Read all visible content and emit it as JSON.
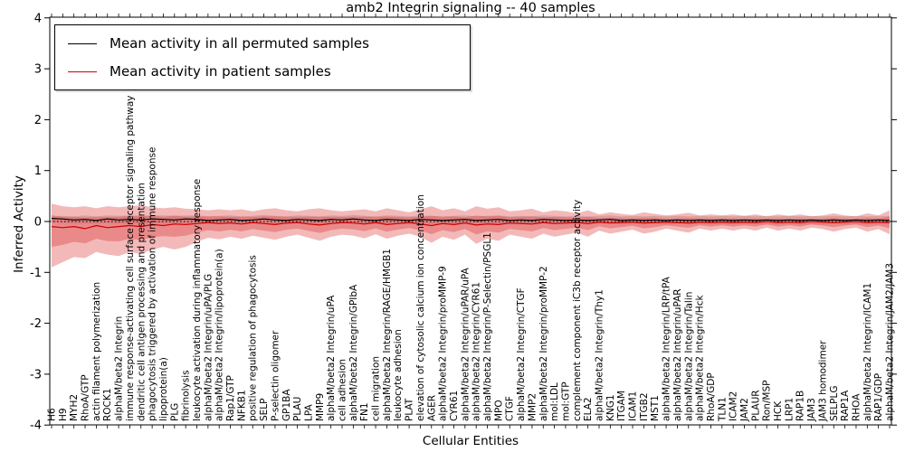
{
  "chart_data": {
    "type": "line",
    "title": "amb2 Integrin signaling -- 40 samples",
    "xlabel": "Cellular Entities",
    "ylabel": "Inferred Activity",
    "ylim": [
      -4,
      4
    ],
    "yticks": [
      4,
      3,
      2,
      1,
      0,
      -1,
      -2,
      -3,
      -4
    ],
    "zero_line": true,
    "grid": false,
    "legend_position": "upper left",
    "categories": [
      "H6",
      "H9",
      "MYH2",
      "RhoA/GTP",
      "actin filament polymerization",
      "ROCK1",
      "alphaM/beta2 Integrin",
      "immune response-activating cell surface receptor signaling pathway",
      "dendritic cell antigen processing and presentation",
      "phagocytosis triggered by activation of immune response",
      "lipoprotein(a)",
      "PLG",
      "fibrinolysis",
      "leukocyte activation during inflammatory response",
      "alphaM/beta2 Integrin/uPA/PLG",
      "alphaM/beta2 Integrin/lipoprotein(a)",
      "Rap1/GTP",
      "NFKB1",
      "positive regulation of phagocytosis",
      "SELP",
      "P-selectin oligomer",
      "GP1BA",
      "PLAU",
      "LPA",
      "MMP9",
      "alphaM/beta2 Integrin/uPA",
      "cell adhesion",
      "alphaM/beta2 Integrin/GPIbA",
      "FN1",
      "cell migration",
      "alphaM/beta2 Integrin/RAGE/HMGB1",
      "leukocyte adhesion",
      "PLAT",
      "elevation of cytosolic calcium ion concentration",
      "AGER",
      "alphaM/beta2 Integrin/proMMP-9",
      "CYR61",
      "alphaM/beta2 Integrin/uPAR/uPA",
      "alphaM/beta2 Integrin/CYR61",
      "alphaM/beta2 Integrin/P-Selectin/PSGL1",
      "MPO",
      "CTGF",
      "alphaM/beta2 Integrin/CTGF",
      "MMP2",
      "alphaM/beta2 Integrin/proMMP-2",
      "mol:LDL",
      "mol:GTP",
      "complement component iC3b receptor activity",
      "ELA2",
      "alphaM/beta2 Integrin/Thy1",
      "KNG1",
      "ITGAM",
      "ICAM1",
      "ITGB2",
      "MST1",
      "alphaM/beta2 Integrin/LRP/tPA",
      "alphaM/beta2 Integrin/uPAR",
      "alphaM/beta2 Integrin/Talin",
      "alphaM/beta2 Integrin/Hck",
      "RhoA/GDP",
      "TLN1",
      "ICAM2",
      "JAM2",
      "PLAUR",
      "Ron/MSP",
      "HCK",
      "LRP1",
      "RAP1B",
      "JAM3",
      "JAM3 homodimer",
      "SELPLG",
      "RAP1A",
      "RHOA",
      "alphaM/beta2 Integrin/ICAM1",
      "RAP1/GDP",
      "alphaM/beta2 Integrin/JAM2/JAM3"
    ],
    "series": [
      {
        "name": "Mean activity in all permuted samples",
        "color": "#000000",
        "band_color": "#999999",
        "values": [
          0.06,
          0.05,
          0.03,
          0.04,
          0.02,
          0.05,
          0.03,
          0.04,
          0.03,
          0.05,
          0.04,
          0.03,
          0.05,
          0.04,
          0.02,
          0.03,
          0.04,
          0.02,
          0.03,
          0.05,
          0.03,
          0.02,
          0.04,
          0.03,
          0.02,
          0.04,
          0.03,
          0.05,
          0.03,
          0.02,
          0.04,
          0.03,
          0.02,
          0.04,
          0.03,
          0.02,
          0.03,
          0.04,
          0.02,
          0.03,
          0.04,
          0.02,
          0.03,
          0.02,
          0.04,
          0.03,
          0.02,
          0.03,
          0.02,
          0.03,
          0.04,
          0.02,
          0.03,
          0.02,
          0.03,
          0.02,
          0.03,
          0.02,
          0.03,
          0.02,
          0.03,
          0.02,
          0.03,
          0.02,
          0.03,
          0.02,
          0.03,
          0.02,
          0.03,
          0.02,
          0.03,
          0.02,
          0.03,
          0.02,
          0.03,
          0.02
        ],
        "band_upper": [
          0.1,
          0.11,
          0.1,
          0.12,
          0.1,
          0.12,
          0.11,
          0.12,
          0.11,
          0.12,
          0.12,
          0.11,
          0.12,
          0.12,
          0.1,
          0.11,
          0.12,
          0.1,
          0.11,
          0.13,
          0.11,
          0.1,
          0.12,
          0.11,
          0.1,
          0.12,
          0.11,
          0.13,
          0.11,
          0.1,
          0.12,
          0.11,
          0.1,
          0.12,
          0.11,
          0.1,
          0.11,
          0.12,
          0.1,
          0.11,
          0.12,
          0.1,
          0.11,
          0.1,
          0.12,
          0.11,
          0.1,
          0.11,
          0.1,
          0.11,
          0.12,
          0.1,
          0.11,
          0.1,
          0.11,
          0.1,
          0.11,
          0.1,
          0.11,
          0.1,
          0.11,
          0.1,
          0.11,
          0.1,
          0.11,
          0.1,
          0.11,
          0.1,
          0.11,
          0.1,
          0.11,
          0.1,
          0.11,
          0.1,
          0.11,
          0.1
        ],
        "band_lower": [
          -0.02,
          -0.03,
          -0.04,
          -0.04,
          -0.05,
          -0.03,
          -0.05,
          -0.04,
          -0.05,
          -0.03,
          -0.04,
          -0.05,
          -0.03,
          -0.04,
          -0.06,
          -0.05,
          -0.04,
          -0.06,
          -0.05,
          -0.03,
          -0.05,
          -0.06,
          -0.04,
          -0.05,
          -0.06,
          -0.04,
          -0.05,
          -0.03,
          -0.05,
          -0.06,
          -0.04,
          -0.05,
          -0.06,
          -0.04,
          -0.05,
          -0.06,
          -0.05,
          -0.04,
          -0.06,
          -0.05,
          -0.04,
          -0.06,
          -0.05,
          -0.06,
          -0.04,
          -0.05,
          -0.06,
          -0.05,
          -0.06,
          -0.05,
          -0.04,
          -0.06,
          -0.05,
          -0.06,
          -0.05,
          -0.06,
          -0.05,
          -0.06,
          -0.05,
          -0.06,
          -0.05,
          -0.06,
          -0.05,
          -0.06,
          -0.05,
          -0.06,
          -0.05,
          -0.06,
          -0.05,
          -0.06,
          -0.05,
          -0.06,
          -0.05,
          -0.06,
          -0.05,
          -0.06
        ]
      },
      {
        "name": "Mean activity in patient samples",
        "color": "#cc0000",
        "band_color": "#e05050",
        "values": [
          -0.1,
          -0.12,
          -0.1,
          -0.14,
          -0.08,
          -0.12,
          -0.1,
          -0.08,
          -0.1,
          -0.06,
          -0.08,
          -0.05,
          -0.06,
          -0.04,
          -0.02,
          -0.04,
          -0.03,
          -0.05,
          -0.02,
          -0.04,
          -0.06,
          -0.03,
          -0.02,
          -0.05,
          -0.07,
          -0.04,
          -0.02,
          -0.03,
          -0.05,
          -0.02,
          -0.06,
          -0.04,
          -0.02,
          -0.05,
          -0.08,
          -0.04,
          -0.06,
          -0.03,
          -0.07,
          -0.05,
          -0.06,
          -0.03,
          -0.04,
          -0.05,
          -0.02,
          -0.04,
          -0.03,
          -0.02,
          -0.04,
          -0.01,
          -0.03,
          -0.02,
          -0.01,
          -0.03,
          -0.02,
          -0.01,
          -0.02,
          -0.03,
          -0.01,
          -0.02,
          -0.01,
          -0.02,
          -0.01,
          -0.02,
          0.0,
          -0.02,
          -0.01,
          -0.02,
          0.0,
          -0.01,
          -0.02,
          -0.01,
          0.0,
          -0.02,
          -0.01,
          -0.02
        ],
        "band_upper": [
          0.35,
          0.3,
          0.28,
          0.3,
          0.26,
          0.3,
          0.28,
          0.3,
          0.32,
          0.28,
          0.26,
          0.28,
          0.25,
          0.24,
          0.22,
          0.24,
          0.22,
          0.24,
          0.2,
          0.24,
          0.26,
          0.22,
          0.2,
          0.24,
          0.26,
          0.22,
          0.2,
          0.22,
          0.24,
          0.2,
          0.26,
          0.22,
          0.18,
          0.24,
          0.3,
          0.22,
          0.26,
          0.2,
          0.3,
          0.25,
          0.28,
          0.2,
          0.22,
          0.25,
          0.18,
          0.22,
          0.2,
          0.16,
          0.22,
          0.14,
          0.18,
          0.15,
          0.13,
          0.18,
          0.15,
          0.12,
          0.14,
          0.17,
          0.12,
          0.14,
          0.12,
          0.14,
          0.11,
          0.14,
          0.1,
          0.14,
          0.11,
          0.14,
          0.1,
          0.12,
          0.16,
          0.12,
          0.1,
          0.16,
          0.12,
          0.22
        ],
        "band_lower": [
          -0.9,
          -0.8,
          -0.7,
          -0.72,
          -0.6,
          -0.65,
          -0.68,
          -0.6,
          -0.64,
          -0.55,
          -0.5,
          -0.55,
          -0.5,
          -0.4,
          -0.32,
          -0.35,
          -0.3,
          -0.34,
          -0.28,
          -0.32,
          -0.36,
          -0.3,
          -0.26,
          -0.32,
          -0.38,
          -0.3,
          -0.26,
          -0.28,
          -0.33,
          -0.25,
          -0.34,
          -0.28,
          -0.24,
          -0.3,
          -0.42,
          -0.3,
          -0.36,
          -0.26,
          -0.44,
          -0.34,
          -0.38,
          -0.26,
          -0.3,
          -0.34,
          -0.24,
          -0.3,
          -0.26,
          -0.22,
          -0.3,
          -0.18,
          -0.24,
          -0.2,
          -0.16,
          -0.24,
          -0.2,
          -0.14,
          -0.18,
          -0.22,
          -0.14,
          -0.18,
          -0.14,
          -0.18,
          -0.14,
          -0.18,
          -0.12,
          -0.18,
          -0.14,
          -0.18,
          -0.12,
          -0.15,
          -0.2,
          -0.15,
          -0.12,
          -0.2,
          -0.15,
          -0.25
        ]
      }
    ]
  }
}
